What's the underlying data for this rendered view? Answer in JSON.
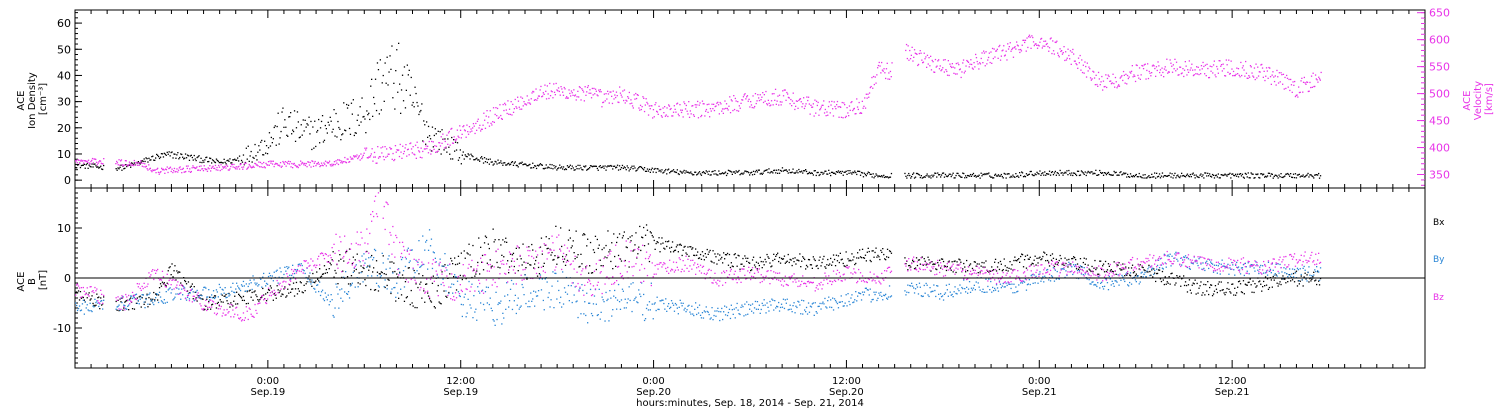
{
  "colors": {
    "black": "#000000",
    "magenta": "#e833e8",
    "blue": "#2a86d6"
  },
  "top_panel": {
    "left_ylabel": [
      "ACE",
      "Ion Density",
      "[cm⁻³]"
    ],
    "right_ylabel": [
      "ACE",
      "Velocity",
      "[km/s]"
    ]
  },
  "bottom_panel": {
    "left_ylabel": [
      "ACE",
      "B",
      "[nT]"
    ],
    "legend": [
      "Bx",
      "By",
      "Bz"
    ]
  },
  "x_axis": {
    "ticks": [
      {
        "t": 24,
        "time": "0:00",
        "day": "Sep.19"
      },
      {
        "t": 36,
        "time": "12:00",
        "day": "Sep.19"
      },
      {
        "t": 48,
        "time": "0:00",
        "day": "Sep.20"
      },
      {
        "t": 60,
        "time": "12:00",
        "day": "Sep.20"
      },
      {
        "t": 72,
        "time": "0:00",
        "day": "Sep.21"
      },
      {
        "t": 84,
        "time": "12:00",
        "day": "Sep.21"
      }
    ],
    "title": "hours:minutes, Sep. 18, 2014 - Sep. 21, 2014"
  },
  "chart_data": [
    {
      "type": "scatter",
      "panel": "top",
      "x_unit": "hours since Sep. 18, 2014 00:00",
      "xlim": [
        12,
        96
      ],
      "ylim_left": [
        -3,
        65
      ],
      "ylim_right": [
        325,
        655
      ],
      "left_ticks": [
        0,
        10,
        20,
        30,
        40,
        50,
        60
      ],
      "right_ticks": [
        350,
        400,
        450,
        500,
        550,
        600,
        650
      ],
      "grid": false,
      "gaps": [
        [
          13.8,
          14.5
        ],
        [
          62.8,
          63.6
        ]
      ],
      "series": [
        {
          "name": "Ion Density",
          "axis": "left",
          "color": "#000000",
          "x": [
            12,
            14,
            15,
            17,
            18,
            20,
            21,
            22,
            23,
            24,
            25,
            26,
            27,
            28,
            29,
            30,
            31,
            32,
            33,
            34,
            36,
            38,
            40,
            42,
            44,
            46,
            48,
            50,
            52,
            54,
            56,
            58,
            60,
            62,
            64,
            66,
            68,
            70,
            72,
            74,
            76,
            78,
            80,
            82,
            84,
            86,
            88,
            89.5
          ],
          "y": [
            6,
            5,
            5,
            9,
            10,
            8,
            7,
            8,
            11,
            15,
            22,
            19,
            18,
            22,
            23,
            26,
            38,
            40,
            30,
            18,
            10,
            7,
            6,
            5,
            5,
            5,
            4,
            3,
            3,
            3,
            4,
            3,
            3,
            2,
            2,
            2,
            2,
            2,
            3,
            3,
            3,
            2,
            2,
            2,
            2,
            2,
            2,
            2
          ]
        },
        {
          "name": "Velocity",
          "axis": "right",
          "color": "#e833e8",
          "x": [
            12,
            14,
            15,
            16,
            17,
            18,
            20,
            22,
            24,
            26,
            28,
            30,
            32,
            34,
            36,
            38,
            40,
            41,
            42,
            44,
            45,
            46,
            48,
            50,
            52,
            54,
            56,
            58,
            60,
            61,
            62,
            62.7,
            63.7,
            65,
            67,
            68,
            70,
            72,
            74,
            76,
            78,
            80,
            82,
            84,
            86,
            88,
            89.5
          ],
          "y": [
            375,
            375,
            372,
            373,
            357,
            360,
            362,
            365,
            370,
            370,
            372,
            385,
            392,
            400,
            430,
            460,
            490,
            505,
            505,
            500,
            490,
            500,
            470,
            470,
            475,
            490,
            495,
            475,
            470,
            480,
            545,
            540,
            580,
            560,
            545,
            560,
            580,
            600,
            570,
            520,
            540,
            550,
            545,
            550,
            540,
            510,
            530
          ]
        }
      ]
    },
    {
      "type": "scatter",
      "panel": "bottom",
      "x_unit": "hours since Sep. 18, 2014 00:00",
      "xlim": [
        12,
        96
      ],
      "ylim": [
        -18,
        18
      ],
      "left_ticks": [
        -10,
        0,
        10
      ],
      "zero_line": true,
      "grid": false,
      "gaps": [
        [
          13.8,
          14.5
        ],
        [
          62.8,
          63.6
        ]
      ],
      "series": [
        {
          "name": "Bx",
          "color": "#000000",
          "x": [
            12,
            14,
            15,
            17,
            18,
            20,
            22,
            24,
            26,
            28,
            30,
            31,
            32,
            34,
            36,
            38,
            40,
            42,
            44,
            46,
            48,
            50,
            52,
            54,
            56,
            58,
            60,
            62,
            64,
            66,
            68,
            70,
            72,
            74,
            76,
            78,
            80,
            82,
            84,
            86,
            88,
            89.5
          ],
          "y": [
            -3,
            -5,
            -5,
            -4,
            2,
            -5,
            -4,
            -3,
            -2,
            3,
            2,
            1,
            -1,
            -3,
            2,
            6,
            3,
            7,
            5,
            6,
            7,
            6,
            4,
            3,
            4,
            3,
            4,
            5,
            3,
            3,
            2,
            3,
            4,
            3,
            2,
            2,
            0,
            -2,
            -2,
            -1,
            0,
            0
          ]
        },
        {
          "name": "By",
          "color": "#2a86d6",
          "x": [
            12,
            14,
            15,
            17,
            18,
            20,
            22,
            24,
            26,
            28,
            30,
            32,
            34,
            36,
            38,
            40,
            42,
            44,
            46,
            48,
            50,
            52,
            54,
            56,
            58,
            60,
            62,
            64,
            66,
            68,
            70,
            72,
            74,
            76,
            78,
            80,
            82,
            84,
            86,
            88,
            89.5
          ],
          "y": [
            -6,
            -5,
            -5,
            -4,
            -3,
            -3,
            -2,
            0,
            2,
            -5,
            3,
            0,
            6,
            -4,
            -6,
            -3,
            -2,
            -6,
            -4,
            -5,
            -6,
            -7,
            -6,
            -5,
            -6,
            -4,
            -3,
            -2,
            -3,
            -1,
            -2,
            0,
            2,
            -1,
            0,
            4,
            3,
            2,
            2,
            1,
            1
          ]
        },
        {
          "name": "Bz",
          "color": "#e833e8",
          "x": [
            12,
            14,
            15,
            17,
            18,
            20,
            22,
            23,
            24,
            26,
            28,
            30,
            31,
            32,
            34,
            36,
            38,
            40,
            42,
            44,
            46,
            48,
            50,
            52,
            54,
            56,
            58,
            60,
            62,
            64,
            66,
            68,
            70,
            72,
            74,
            76,
            78,
            80,
            82,
            84,
            86,
            88,
            89.5
          ],
          "y": [
            -2,
            -4,
            -5,
            1,
            -1,
            -5,
            -7,
            -7,
            -3,
            2,
            5,
            6,
            17,
            4,
            0,
            -1,
            2,
            3,
            5,
            -1,
            4,
            2,
            3,
            0,
            1,
            0,
            -1,
            1,
            0,
            3,
            2,
            1,
            0,
            2,
            2,
            1,
            3,
            4,
            3,
            3,
            2,
            4,
            4
          ]
        }
      ]
    }
  ]
}
